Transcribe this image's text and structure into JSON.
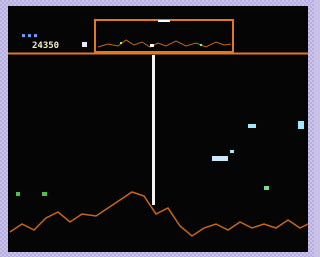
{
  "hud": {
    "score": "24350"
  }
}
